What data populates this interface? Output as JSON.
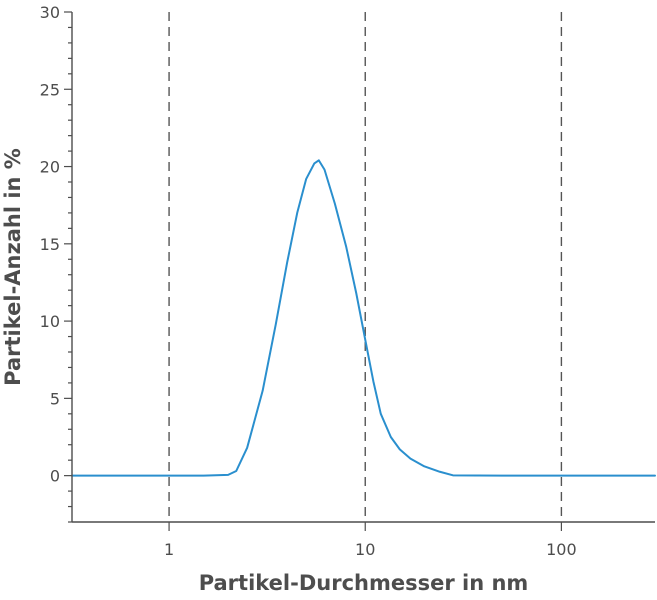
{
  "chart_data": {
    "type": "line",
    "title": "",
    "xlabel": "Partikel-Durchmesser in nm",
    "ylabel": "Partikel-Anzahl in %",
    "x_scale": "log",
    "xlim": [
      0.32,
      300
    ],
    "ylim": [
      -3,
      30
    ],
    "x_ticks": [
      {
        "value": 1,
        "label": "1"
      },
      {
        "value": 10,
        "label": "10"
      },
      {
        "value": 100,
        "label": "100"
      }
    ],
    "y_ticks": [
      {
        "value": 0,
        "label": "0"
      },
      {
        "value": 5,
        "label": "5"
      },
      {
        "value": 10,
        "label": "10"
      },
      {
        "value": 15,
        "label": "15"
      },
      {
        "value": 20,
        "label": "20"
      },
      {
        "value": 25,
        "label": "25"
      },
      {
        "value": 30,
        "label": "30"
      }
    ],
    "gridlines_x": [
      1,
      10,
      100
    ],
    "grid_style": "dashed vertical",
    "legend": "none",
    "series": [
      {
        "color": "#2a8fce",
        "x": [
          0.32,
          0.5,
          1,
          1.5,
          2.0,
          2.2,
          2.5,
          3.0,
          3.5,
          4.0,
          4.5,
          5.0,
          5.5,
          5.8,
          6.2,
          7.0,
          8.0,
          9.0,
          10.0,
          11.0,
          12.0,
          13.5,
          15.0,
          17.0,
          20.0,
          24.0,
          28.0,
          50.0,
          100.0,
          300.0
        ],
        "y": [
          0,
          0,
          0,
          0,
          0.05,
          0.3,
          1.8,
          5.5,
          9.8,
          13.8,
          17.0,
          19.2,
          20.2,
          20.4,
          19.8,
          17.6,
          14.8,
          11.8,
          8.8,
          6.1,
          4.0,
          2.5,
          1.7,
          1.1,
          0.6,
          0.25,
          0.02,
          0,
          0,
          0
        ]
      }
    ]
  }
}
